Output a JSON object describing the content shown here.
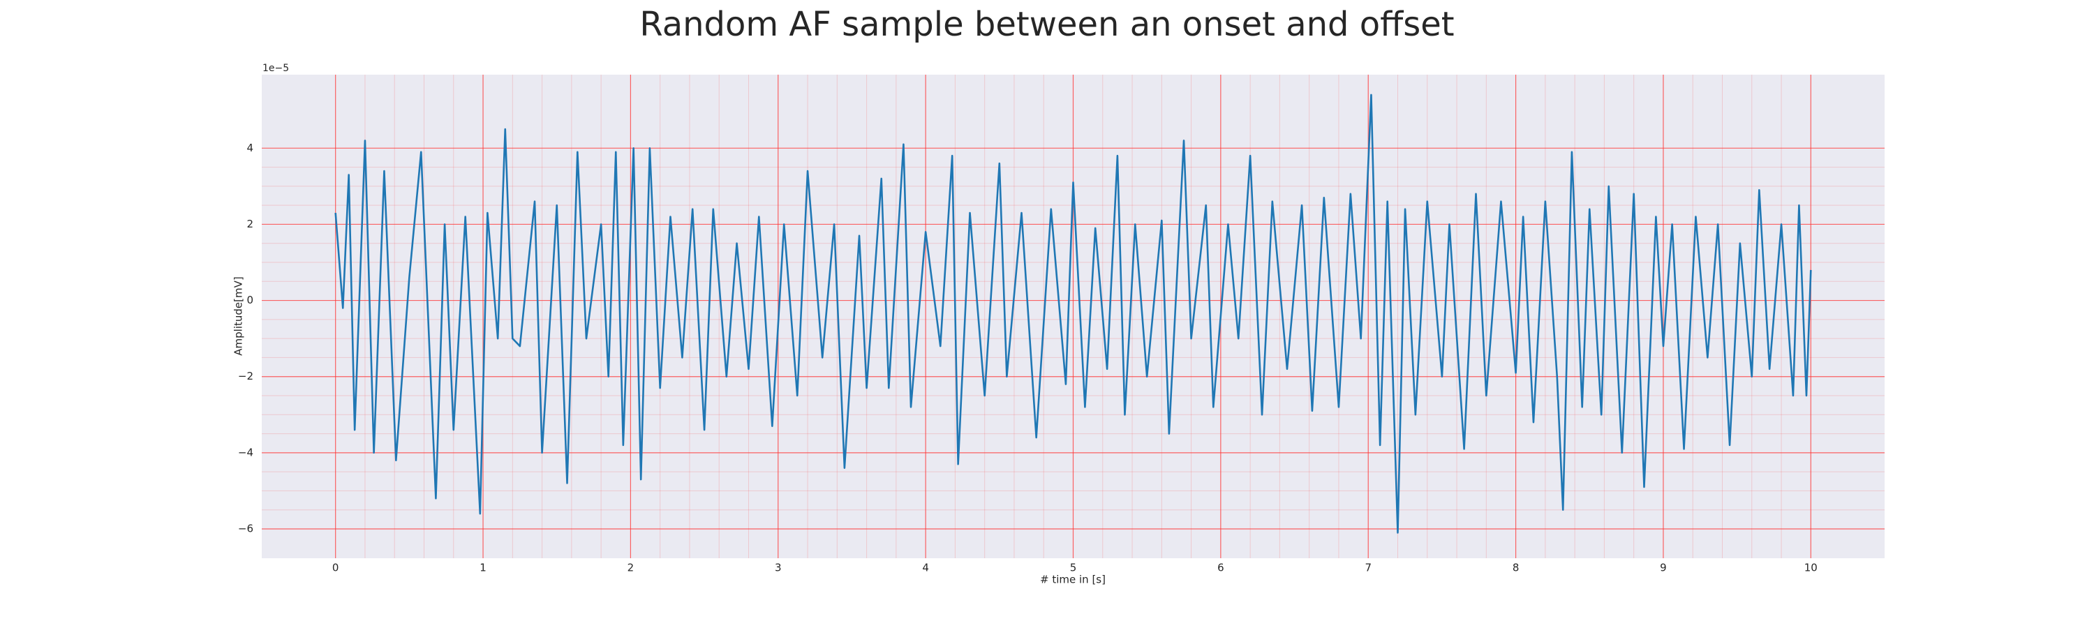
{
  "chart_data": {
    "type": "line",
    "title": "Random AF sample between an onset and offset",
    "x_label": "# time in [s]",
    "y_label": "Amplitude[mV]",
    "y_offset_label": "1e−5",
    "grid": true,
    "minor_grid": true,
    "grid_color": "#ff3333",
    "background": "#eaeaf2",
    "xlim": [
      -0.5,
      10.5
    ],
    "xticks": [
      0,
      1,
      2,
      3,
      4,
      5,
      6,
      7,
      8,
      9,
      10
    ],
    "ylim": [
      -6.77,
      5.93
    ],
    "yticks": [
      {
        "value": -6,
        "label": "−6"
      },
      {
        "value": -4,
        "label": "−4"
      },
      {
        "value": -2,
        "label": "−2"
      },
      0,
      2,
      4
    ],
    "series": [
      {
        "color": "#1f77b4",
        "x": [
          0,
          0.05,
          0.09,
          0.13,
          0.2,
          0.26,
          0.33,
          0.41,
          0.5,
          0.58,
          0.68,
          0.74,
          0.8,
          0.88,
          0.98,
          1.03,
          1.1,
          1.15,
          1.2,
          1.25,
          1.35,
          1.4,
          1.5,
          1.57,
          1.64,
          1.7,
          1.8,
          1.85,
          1.9,
          1.95,
          2.02,
          2.07,
          2.13,
          2.2,
          2.27,
          2.35,
          2.42,
          2.5,
          2.56,
          2.65,
          2.72,
          2.8,
          2.87,
          2.96,
          3.04,
          3.13,
          3.2,
          3.3,
          3.38,
          3.45,
          3.55,
          3.6,
          3.7,
          3.75,
          3.85,
          3.9,
          4.0,
          4.1,
          4.18,
          4.22,
          4.3,
          4.4,
          4.5,
          4.55,
          4.65,
          4.75,
          4.85,
          4.95,
          5.0,
          5.08,
          5.15,
          5.23,
          5.3,
          5.35,
          5.42,
          5.5,
          5.6,
          5.65,
          5.75,
          5.8,
          5.9,
          5.95,
          6.05,
          6.12,
          6.2,
          6.28,
          6.35,
          6.45,
          6.55,
          6.62,
          6.7,
          6.8,
          6.88,
          6.95,
          7.02,
          7.08,
          7.13,
          7.2,
          7.25,
          7.32,
          7.4,
          7.5,
          7.55,
          7.65,
          7.73,
          7.8,
          7.9,
          8.0,
          8.05,
          8.12,
          8.2,
          8.28,
          8.32,
          8.38,
          8.45,
          8.5,
          8.58,
          8.63,
          8.72,
          8.8,
          8.87,
          8.95,
          9.0,
          9.06,
          9.14,
          9.22,
          9.3,
          9.37,
          9.45,
          9.52,
          9.6,
          9.65,
          9.72,
          9.8,
          9.88,
          9.92,
          9.97,
          10.0
        ],
        "values": [
          2.3,
          -0.2,
          3.3,
          -3.4,
          4.2,
          -4.0,
          3.4,
          -4.2,
          0.6,
          3.9,
          -5.2,
          2.0,
          -3.4,
          2.2,
          -5.6,
          2.3,
          -1.0,
          4.5,
          -1.0,
          -1.2,
          2.6,
          -4.0,
          2.5,
          -4.8,
          3.9,
          -1.0,
          2.0,
          -2.0,
          3.9,
          -3.8,
          4.0,
          -4.7,
          4.0,
          -2.3,
          2.2,
          -1.5,
          2.4,
          -3.4,
          2.4,
          -2.0,
          1.5,
          -1.8,
          2.2,
          -3.3,
          2.0,
          -2.5,
          3.4,
          -1.5,
          2.0,
          -4.4,
          1.7,
          -2.3,
          3.2,
          -2.3,
          4.1,
          -2.8,
          1.8,
          -1.2,
          3.8,
          -4.3,
          2.3,
          -2.5,
          3.6,
          -2.0,
          2.3,
          -3.6,
          2.4,
          -2.2,
          3.1,
          -2.8,
          1.9,
          -1.8,
          3.8,
          -3.0,
          2.0,
          -2.0,
          2.1,
          -3.5,
          4.2,
          -1.0,
          2.5,
          -2.8,
          2.0,
          -1.0,
          3.8,
          -3.0,
          2.6,
          -1.8,
          2.5,
          -2.9,
          2.7,
          -2.8,
          2.8,
          -1.0,
          5.4,
          -3.8,
          2.6,
          -6.1,
          2.4,
          -3.0,
          2.6,
          -2.0,
          2.0,
          -3.9,
          2.8,
          -2.5,
          2.6,
          -1.9,
          2.2,
          -3.2,
          2.6,
          -2.0,
          -5.5,
          3.9,
          -2.8,
          2.4,
          -3.0,
          3.0,
          -4.0,
          2.8,
          -4.9,
          2.2,
          -1.2,
          2.0,
          -3.9,
          2.2,
          -1.5,
          2.0,
          -3.8,
          1.5,
          -2.0,
          2.9,
          -1.8,
          2.0,
          -2.5,
          2.5,
          -2.5,
          0.8
        ]
      }
    ]
  }
}
